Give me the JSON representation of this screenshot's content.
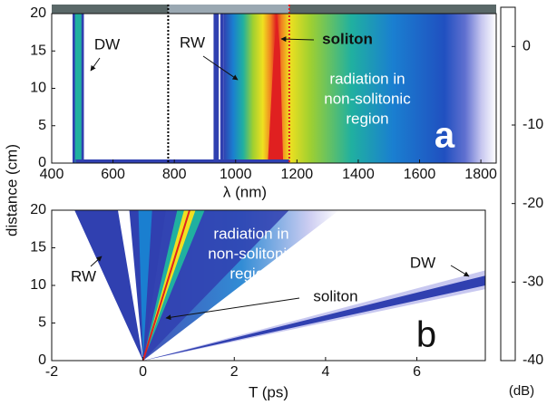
{
  "chart_data": [
    {
      "type": "heatmap",
      "xlabel": "λ (nm)",
      "ylabel": "distance (cm)",
      "panel_label": "a",
      "xlim": [
        400,
        1850
      ],
      "xticks": [
        400,
        600,
        800,
        1000,
        1200,
        1400,
        1600,
        1800
      ],
      "ylim": [
        0,
        20
      ],
      "yticks": [
        0,
        5,
        10,
        15,
        20
      ],
      "vlines": [
        {
          "x": 780,
          "color": "#000000"
        },
        {
          "x": 1175,
          "color": "#e02020"
        }
      ],
      "annotations": [
        {
          "lines": [
            "DW"
          ]
        },
        {
          "lines": [
            "RW"
          ]
        },
        {
          "lines": [
            "soliton"
          ]
        },
        {
          "lines": [
            "radiation in",
            "non-solitonic",
            "region"
          ]
        }
      ],
      "colorbar": {
        "label": "(dB)",
        "ylim": [
          -40,
          5
        ],
        "yticks": [
          0,
          -10,
          -20,
          -30,
          -40
        ],
        "colormap": [
          "#ffffff",
          "#c8c8f0",
          "#3040b0",
          "#1a7fd0",
          "#20b0a0",
          "#a0d030",
          "#f0e020",
          "#f08020",
          "#e02020",
          "#8b0000"
        ]
      }
    },
    {
      "type": "heatmap",
      "xlabel": "T (ps)",
      "panel_label": "b",
      "xlim": [
        -2,
        7.5
      ],
      "xticks": [
        -2,
        0,
        2,
        4,
        6
      ],
      "ylim": [
        0,
        20
      ],
      "yticks": [
        0,
        5,
        10,
        15,
        20
      ],
      "annotations": [
        {
          "lines": [
            "radiation in",
            "non-solitonic",
            "region"
          ]
        },
        {
          "lines": [
            "soliton"
          ]
        },
        {
          "lines": [
            "RW"
          ]
        },
        {
          "lines": [
            "DW"
          ]
        }
      ]
    }
  ]
}
